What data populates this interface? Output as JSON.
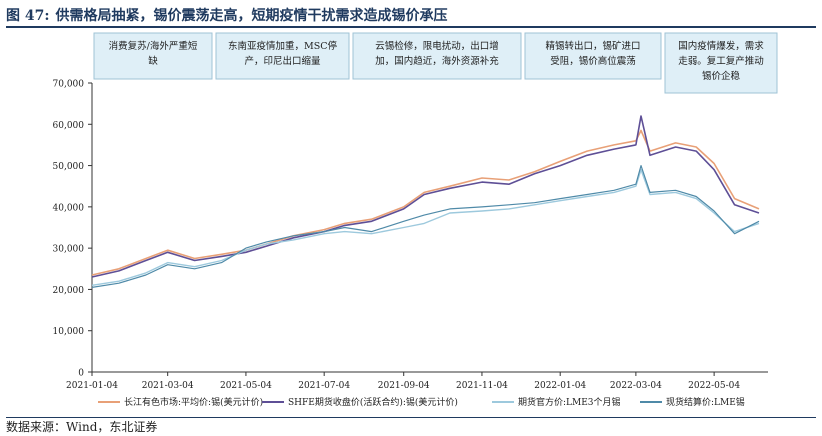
{
  "figure": {
    "number": "图 47:",
    "title": "供需格局抽紧，锡价震荡走高，短期疫情干扰需求造成锡价承压",
    "source": "数据来源：Wind，东北证券"
  },
  "colors": {
    "series1": "#e8a077",
    "series2": "#5e4f96",
    "series3": "#9dc9dd",
    "series4": "#4f8aa8",
    "box_fill": "#dfeff7",
    "box_stroke": "#9fc3d6",
    "axis": "#333333"
  },
  "chart_data": {
    "type": "line",
    "x_type": "date",
    "xlim": [
      "2021-01-04",
      "2022-06-15"
    ],
    "ylim": [
      0,
      70000
    ],
    "y_ticks": [
      0,
      10000,
      20000,
      30000,
      40000,
      50000,
      60000,
      70000
    ],
    "y_tick_labels": [
      "0",
      "10,000",
      "20,000",
      "30,000",
      "40,000",
      "50,000",
      "60,000",
      "70,000"
    ],
    "x_ticks": [
      "2021-01-04",
      "2021-03-04",
      "2021-05-04",
      "2021-07-04",
      "2021-09-04",
      "2021-11-04",
      "2022-01-04",
      "2022-03-04",
      "2022-05-04"
    ],
    "x_tick_labels": [
      "2021-01-04",
      "2021-03-04",
      "2021-05-04",
      "2021-07-04",
      "2021-09-04",
      "2021-11-04",
      "2022-01-04",
      "2022-03-04",
      "2022-05-04"
    ],
    "legend_position": "bottom",
    "annotations": [
      "消费复苏/海外严重短缺",
      "东南亚疫情加重，MSC停产，印尼出口缩量",
      "云锡检修，限电扰动，出口增加，国内趋近，海外资源补充",
      "精锡转出口，锡矿进口受阻，锡价高位震荡",
      "国内疫情爆发，需求走弱。复工复产推动锡价企稳"
    ],
    "series": [
      {
        "name": "长江有色市场:平均价:锡(美元计价)",
        "x": [
          "2021-01-04",
          "2021-01-25",
          "2021-02-15",
          "2021-03-04",
          "2021-03-25",
          "2021-04-15",
          "2021-05-04",
          "2021-05-20",
          "2021-06-10",
          "2021-07-04",
          "2021-07-20",
          "2021-08-10",
          "2021-09-04",
          "2021-09-20",
          "2021-10-10",
          "2021-11-04",
          "2021-11-25",
          "2021-12-15",
          "2022-01-04",
          "2022-01-25",
          "2022-02-15",
          "2022-03-04",
          "2022-03-08",
          "2022-03-15",
          "2022-04-04",
          "2022-04-20",
          "2022-05-04",
          "2022-05-20",
          "2022-06-08"
        ],
        "values": [
          23500,
          25000,
          27500,
          29500,
          27500,
          28500,
          29500,
          31000,
          33000,
          34500,
          36000,
          37000,
          40000,
          43500,
          45000,
          47000,
          46500,
          48500,
          51000,
          53500,
          55000,
          56000,
          58500,
          53500,
          55500,
          54500,
          50500,
          42000,
          39500
        ]
      },
      {
        "name": "SHFE期货收盘价(活跃合约):锡(美元计价)",
        "x": [
          "2021-01-04",
          "2021-01-25",
          "2021-02-15",
          "2021-03-04",
          "2021-03-25",
          "2021-04-15",
          "2021-05-04",
          "2021-05-20",
          "2021-06-10",
          "2021-07-04",
          "2021-07-20",
          "2021-08-10",
          "2021-09-04",
          "2021-09-20",
          "2021-10-10",
          "2021-11-04",
          "2021-11-25",
          "2021-12-15",
          "2022-01-04",
          "2022-01-25",
          "2022-02-15",
          "2022-03-04",
          "2022-03-08",
          "2022-03-15",
          "2022-04-04",
          "2022-04-20",
          "2022-05-04",
          "2022-05-20",
          "2022-06-08"
        ],
        "values": [
          23000,
          24500,
          27000,
          29000,
          27000,
          28000,
          29000,
          30500,
          32500,
          34000,
          35500,
          36500,
          39500,
          43000,
          44500,
          46000,
          45500,
          48000,
          50000,
          52500,
          54000,
          55000,
          62000,
          52500,
          54500,
          53500,
          49000,
          40500,
          38500
        ]
      },
      {
        "name": "期货官方价:LME3个月锡",
        "x": [
          "2021-01-04",
          "2021-01-25",
          "2021-02-15",
          "2021-03-04",
          "2021-03-25",
          "2021-04-15",
          "2021-05-04",
          "2021-05-20",
          "2021-06-10",
          "2021-07-04",
          "2021-07-20",
          "2021-08-10",
          "2021-09-04",
          "2021-09-20",
          "2021-10-10",
          "2021-11-04",
          "2021-11-25",
          "2021-12-15",
          "2022-01-04",
          "2022-01-25",
          "2022-02-15",
          "2022-03-04",
          "2022-03-08",
          "2022-03-15",
          "2022-04-04",
          "2022-04-20",
          "2022-05-04",
          "2022-05-20",
          "2022-06-08"
        ],
        "values": [
          21000,
          22000,
          24000,
          26500,
          25500,
          27000,
          29500,
          31000,
          32000,
          33500,
          34000,
          33500,
          35000,
          36000,
          38500,
          39000,
          39500,
          40500,
          41500,
          42500,
          43500,
          45000,
          49000,
          43000,
          43500,
          42000,
          38500,
          34000,
          36000
        ]
      },
      {
        "name": "现货结算价:LME锡",
        "x": [
          "2021-01-04",
          "2021-01-25",
          "2021-02-15",
          "2021-03-04",
          "2021-03-25",
          "2021-04-15",
          "2021-05-04",
          "2021-05-20",
          "2021-06-10",
          "2021-07-04",
          "2021-07-20",
          "2021-08-10",
          "2021-09-04",
          "2021-09-20",
          "2021-10-10",
          "2021-11-04",
          "2021-11-25",
          "2021-12-15",
          "2022-01-04",
          "2022-01-25",
          "2022-02-15",
          "2022-03-04",
          "2022-03-08",
          "2022-03-15",
          "2022-04-04",
          "2022-04-20",
          "2022-05-04",
          "2022-05-20",
          "2022-06-08"
        ],
        "values": [
          20500,
          21500,
          23500,
          26000,
          25000,
          26500,
          30000,
          31500,
          33000,
          34000,
          35000,
          34000,
          36500,
          38000,
          39500,
          40000,
          40500,
          41000,
          42000,
          43000,
          44000,
          45500,
          50000,
          43500,
          44000,
          42500,
          39000,
          33500,
          36500
        ]
      }
    ]
  }
}
